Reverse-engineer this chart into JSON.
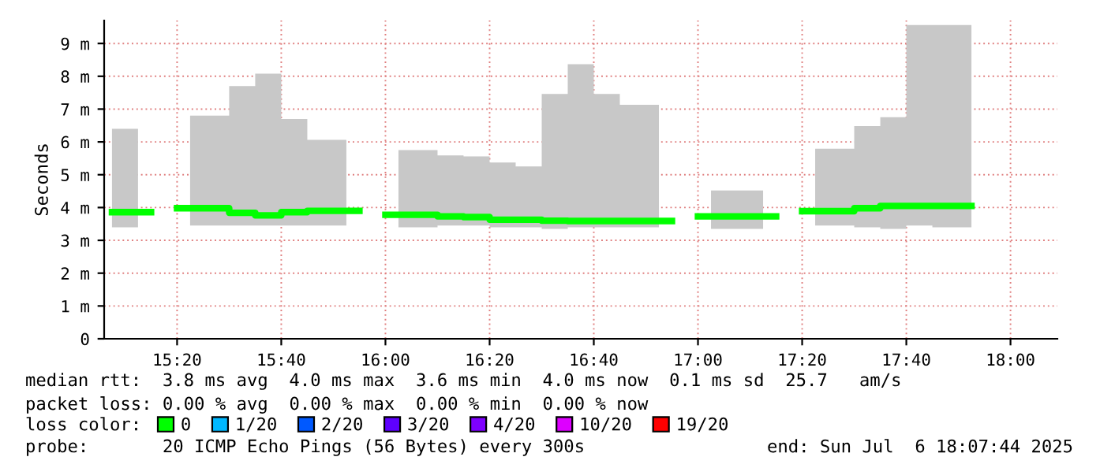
{
  "chart_data": {
    "type": "step",
    "ylabel": "Seconds",
    "legend_title": "loss color:",
    "x": [
      "2025-07-06T15:07:30",
      "2025-07-06T15:12:30",
      "2025-07-06T15:17:30",
      "2025-07-06T15:22:30",
      "2025-07-06T15:27:30",
      "2025-07-06T15:32:30",
      "2025-07-06T15:37:30",
      "2025-07-06T15:42:30",
      "2025-07-06T15:47:30",
      "2025-07-06T15:52:30",
      "2025-07-06T15:57:30",
      "2025-07-06T16:02:30",
      "2025-07-06T16:07:30",
      "2025-07-06T16:12:30",
      "2025-07-06T16:17:30",
      "2025-07-06T16:22:30",
      "2025-07-06T16:27:30",
      "2025-07-06T16:32:30",
      "2025-07-06T16:37:30",
      "2025-07-06T16:42:30",
      "2025-07-06T16:47:30",
      "2025-07-06T16:52:30",
      "2025-07-06T16:57:30",
      "2025-07-06T17:02:30",
      "2025-07-06T17:07:30",
      "2025-07-06T17:12:30",
      "2025-07-06T17:17:30",
      "2025-07-06T17:22:30",
      "2025-07-06T17:27:30",
      "2025-07-06T17:32:30",
      "2025-07-06T17:37:30",
      "2025-07-06T17:42:30",
      "2025-07-06T17:47:30",
      "2025-07-06T17:52:30"
    ],
    "series": [
      {
        "name": "0",
        "color": "#00ff00",
        "values": [
          3.86,
          3.86,
          null,
          3.98,
          3.98,
          3.84,
          3.76,
          3.86,
          3.9,
          3.9,
          null,
          3.78,
          3.78,
          3.73,
          3.71,
          3.63,
          3.63,
          3.6,
          3.59,
          3.59,
          3.59,
          3.59,
          null,
          3.73,
          3.73,
          3.73,
          null,
          3.89,
          3.89,
          3.98,
          4.05,
          4.05,
          4.05,
          4.05
        ],
        "lower": [
          3.4,
          3.4,
          null,
          3.45,
          3.45,
          3.45,
          3.45,
          3.45,
          3.45,
          3.45,
          null,
          3.4,
          3.4,
          3.45,
          3.45,
          3.4,
          3.4,
          3.35,
          3.4,
          3.4,
          3.4,
          3.4,
          null,
          3.35,
          3.35,
          3.35,
          null,
          3.45,
          3.45,
          3.4,
          3.35,
          3.45,
          3.4,
          3.4
        ],
        "upper": [
          6.4,
          6.4,
          null,
          6.8,
          6.8,
          7.7,
          8.08,
          6.7,
          6.06,
          6.06,
          null,
          5.75,
          5.75,
          5.59,
          5.56,
          5.37,
          5.25,
          7.46,
          8.37,
          7.46,
          7.13,
          7.13,
          null,
          4.52,
          4.52,
          4.52,
          null,
          5.79,
          5.79,
          6.48,
          6.75,
          9.56,
          9.56,
          9.56
        ]
      },
      {
        "name": "1/20",
        "color": "#00b8ff",
        "values": [
          null,
          null,
          null,
          null,
          null,
          null,
          null,
          null,
          null,
          null,
          null,
          null,
          null,
          null,
          null,
          null,
          null,
          null,
          null,
          null,
          null,
          null,
          null,
          null,
          null,
          null,
          null,
          null,
          null,
          null,
          null,
          null,
          null,
          null
        ]
      },
      {
        "name": "2/20",
        "color": "#0059ff",
        "values": [
          null,
          null,
          null,
          null,
          null,
          null,
          null,
          null,
          null,
          null,
          null,
          null,
          null,
          null,
          null,
          null,
          null,
          null,
          null,
          null,
          null,
          null,
          null,
          null,
          null,
          null,
          null,
          null,
          null,
          null,
          null,
          null,
          null,
          null
        ]
      },
      {
        "name": "3/20",
        "color": "#5e00ff",
        "values": [
          null,
          null,
          null,
          null,
          null,
          null,
          null,
          null,
          null,
          null,
          null,
          null,
          null,
          null,
          null,
          null,
          null,
          null,
          null,
          null,
          null,
          null,
          null,
          null,
          null,
          null,
          null,
          null,
          null,
          null,
          null,
          null,
          null,
          null
        ]
      },
      {
        "name": "4/20",
        "color": "#7e00ff",
        "values": [
          null,
          null,
          null,
          null,
          null,
          null,
          null,
          null,
          null,
          null,
          null,
          null,
          null,
          null,
          null,
          null,
          null,
          null,
          null,
          null,
          null,
          null,
          null,
          null,
          null,
          null,
          null,
          null,
          null,
          null,
          null,
          null,
          null,
          null
        ]
      },
      {
        "name": "10/20",
        "color": "#dd00ff",
        "values": [
          null,
          null,
          null,
          null,
          null,
          null,
          null,
          null,
          null,
          null,
          null,
          null,
          null,
          null,
          null,
          null,
          null,
          null,
          null,
          null,
          null,
          null,
          null,
          null,
          null,
          null,
          null,
          null,
          null,
          null,
          null,
          null,
          null,
          null
        ]
      },
      {
        "name": "19/20",
        "color": "#ff0000",
        "values": [
          null,
          null,
          null,
          null,
          null,
          null,
          null,
          null,
          null,
          null,
          null,
          null,
          null,
          null,
          null,
          null,
          null,
          null,
          null,
          null,
          null,
          null,
          null,
          null,
          null,
          null,
          null,
          null,
          null,
          null,
          null,
          null,
          null,
          null
        ]
      }
    ],
    "xlim": [
      "2025-07-06T15:06",
      "2025-07-06T18:09"
    ],
    "xticks": [
      {
        "value": "2025-07-06T15:20",
        "label": "15:20"
      },
      {
        "value": "2025-07-06T15:40",
        "label": "15:40"
      },
      {
        "value": "2025-07-06T16:00",
        "label": "16:00"
      },
      {
        "value": "2025-07-06T16:20",
        "label": "16:20"
      },
      {
        "value": "2025-07-06T16:40",
        "label": "16:40"
      },
      {
        "value": "2025-07-06T17:00",
        "label": "17:00"
      },
      {
        "value": "2025-07-06T17:20",
        "label": "17:20"
      },
      {
        "value": "2025-07-06T17:40",
        "label": "17:40"
      },
      {
        "value": "2025-07-06T18:00",
        "label": "18:00"
      }
    ],
    "ylim": [
      0,
      9.7
    ],
    "yticks": [
      0,
      {
        "value": 1,
        "label": "1 m"
      },
      {
        "value": 2,
        "label": "2 m"
      },
      {
        "value": 3,
        "label": "3 m"
      },
      {
        "value": 4,
        "label": "4 m"
      },
      {
        "value": 5,
        "label": "5 m"
      },
      {
        "value": 6,
        "label": "6 m"
      },
      {
        "value": 7,
        "label": "7 m"
      },
      {
        "value": 8,
        "label": "8 m"
      },
      {
        "value": 9,
        "label": "9 m"
      }
    ],
    "grid": true,
    "legend": "bottom",
    "annotations": [
      "median rtt:  3.8 ms avg  4.0 ms max  3.6 ms min  4.0 ms now  0.1 ms sd  25.7   am/s",
      "packet loss: 0.00 % avg  0.00 % max  0.00 % min  0.00 % now",
      "probe:       20 ICMP Echo Pings (56 Bytes) every 300s",
      "end: Sun Jul  6 18:07:44 2025"
    ]
  }
}
